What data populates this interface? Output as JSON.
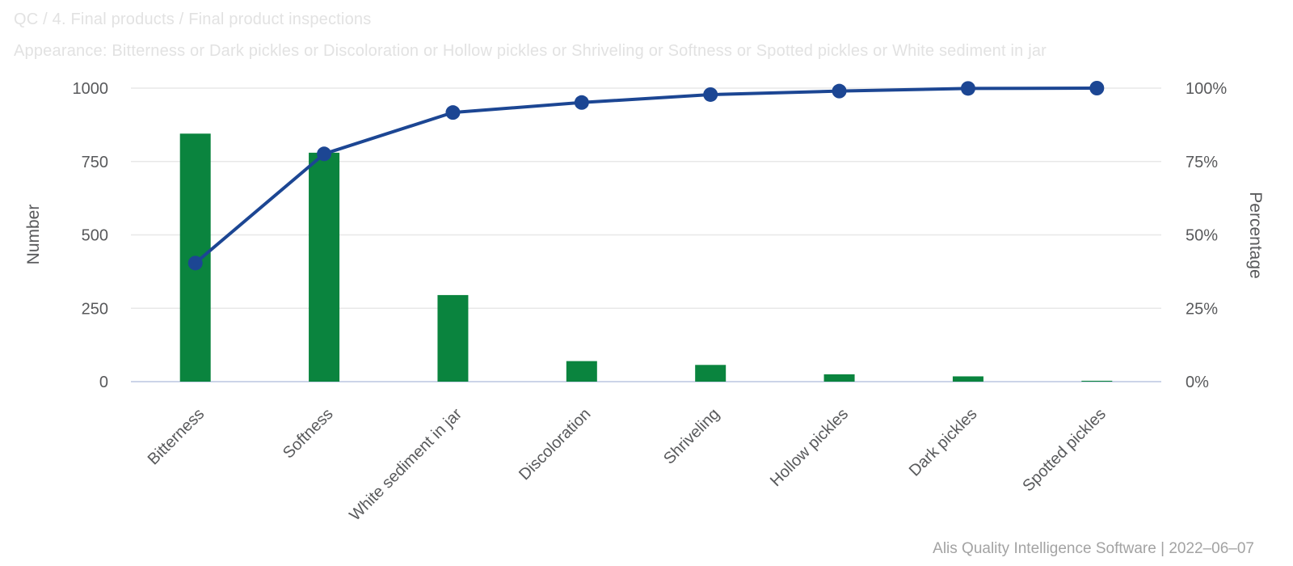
{
  "footer": {
    "credit": "Alis Quality Intelligence Software | 2022–06–07"
  },
  "chart_data": {
    "type": "bar",
    "subtype": "pareto (bars + cumulative percentage line)",
    "title": "QC / 4. Final products / Final product inspections",
    "subtitle": "Appearance: Bitterness or Dark pickles or Discoloration or Hollow pickles or Shriveling or Softness or Spotted pickles or White sediment in jar",
    "categories": [
      "Bitterness",
      "Softness",
      "White sediment in jar",
      "Discoloration",
      "Shriveling",
      "Hollow pickles",
      "Dark pickles",
      "Spotted pickles"
    ],
    "series": [
      {
        "name": "Number",
        "type": "bar",
        "color": "#0a843e",
        "values": [
          845,
          780,
          295,
          70,
          57,
          25,
          18,
          3
        ]
      },
      {
        "name": "Cumulative percentage",
        "type": "line",
        "color": "#1c4693",
        "values_pct": [
          40.4,
          77.6,
          91.7,
          95.1,
          97.8,
          99.0,
          99.9,
          100
        ]
      }
    ],
    "left_axis": {
      "label": "Number",
      "ticks": [
        "0",
        "250",
        "500",
        "750",
        "1000"
      ],
      "tick_values": [
        0,
        250,
        500,
        750,
        1000
      ],
      "range": [
        0,
        1000
      ]
    },
    "right_axis": {
      "label": "Percentage",
      "ticks": [
        "0%",
        "25%",
        "50%",
        "75%",
        "100%"
      ],
      "tick_values": [
        0,
        25,
        50,
        75,
        100
      ],
      "range": [
        0,
        100
      ]
    },
    "grid": true,
    "legend": "none",
    "colors": {
      "bar": "#0a843e",
      "line": "#1c4693",
      "gridline": "#e8e8e8",
      "zero_line": "#ccd4e8",
      "axis_text": "#58595b",
      "title_text": "#e2e2e2",
      "footer_text": "#a3a3a3"
    }
  }
}
